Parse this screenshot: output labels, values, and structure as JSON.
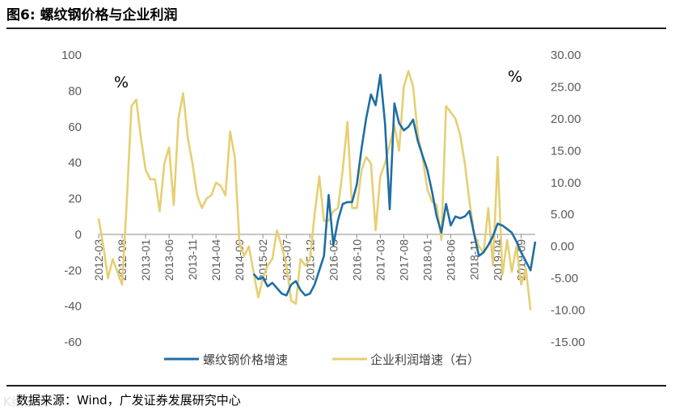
{
  "figure": {
    "number": "图6:",
    "title": "螺纹钢价格与企业利润",
    "source": "数据来源：Wind，广发证券发展研究中心",
    "watermark": "K线模板"
  },
  "chart_data": {
    "type": "line",
    "y_left": {
      "ticks": [
        "100",
        "80",
        "60",
        "40",
        "20",
        "0",
        "-20",
        "-40",
        "-60"
      ],
      "range": [
        -60,
        100
      ],
      "unit": "%"
    },
    "y_right": {
      "ticks": [
        "30.00",
        "25.00",
        "20.00",
        "15.00",
        "10.00",
        "5.00",
        "0.00",
        "-5.00",
        "-10.00",
        "-15.00"
      ],
      "range": [
        -15,
        30
      ],
      "unit": "%"
    },
    "x_ticks": [
      "2012-03",
      "2012-08",
      "2013-01",
      "2013-06",
      "2013-11",
      "2014-04",
      "2014-09",
      "2015-02",
      "2015-07",
      "2015-12",
      "2016-05",
      "2016-10",
      "2017-03",
      "2017-08",
      "2018-01",
      "2018-06",
      "2018-11",
      "2019-04",
      "2019-09"
    ],
    "legend_position": "bottom",
    "grid": false,
    "series": [
      {
        "name": "螺纹钢价格增速",
        "axis": "left",
        "color": "#1f6ea4",
        "points": [
          [
            "2014-12",
            -22
          ],
          [
            "2015-01",
            -25
          ],
          [
            "2015-02",
            -24
          ],
          [
            "2015-03",
            -29
          ],
          [
            "2015-04",
            -27
          ],
          [
            "2015-05",
            -30
          ],
          [
            "2015-06",
            -33
          ],
          [
            "2015-07",
            -34
          ],
          [
            "2015-08",
            -28
          ],
          [
            "2015-09",
            -26
          ],
          [
            "2015-10",
            -31
          ],
          [
            "2015-11",
            -34
          ],
          [
            "2015-12",
            -33
          ],
          [
            "2016-01",
            -28
          ],
          [
            "2016-02",
            -20
          ],
          [
            "2016-03",
            -12
          ],
          [
            "2016-04",
            22
          ],
          [
            "2016-05",
            -6
          ],
          [
            "2016-06",
            8
          ],
          [
            "2016-07",
            17
          ],
          [
            "2016-08",
            18
          ],
          [
            "2016-09",
            18
          ],
          [
            "2016-10",
            28
          ],
          [
            "2016-11",
            48
          ],
          [
            "2016-12",
            65
          ],
          [
            "2017-01",
            78
          ],
          [
            "2017-02",
            72
          ],
          [
            "2017-03",
            89
          ],
          [
            "2017-04",
            62
          ],
          [
            "2017-05",
            14
          ],
          [
            "2017-06",
            73
          ],
          [
            "2017-07",
            62
          ],
          [
            "2017-08",
            58
          ],
          [
            "2017-09",
            60
          ],
          [
            "2017-10",
            64
          ],
          [
            "2017-11",
            52
          ],
          [
            "2017-12",
            44
          ],
          [
            "2018-01",
            36
          ],
          [
            "2018-02",
            24
          ],
          [
            "2018-03",
            10
          ],
          [
            "2018-04",
            1
          ],
          [
            "2018-05",
            17
          ],
          [
            "2018-06",
            5
          ],
          [
            "2018-07",
            10
          ],
          [
            "2018-08",
            9
          ],
          [
            "2018-09",
            10
          ],
          [
            "2018-10",
            13
          ],
          [
            "2018-11",
            0
          ],
          [
            "2018-12",
            -12
          ],
          [
            "2019-01",
            -10
          ],
          [
            "2019-02",
            -6
          ],
          [
            "2019-03",
            -1
          ],
          [
            "2019-04",
            6
          ],
          [
            "2019-05",
            5
          ],
          [
            "2019-06",
            3
          ],
          [
            "2019-07",
            1
          ],
          [
            "2019-08",
            -4
          ],
          [
            "2019-09",
            -10
          ],
          [
            "2019-10",
            -15
          ],
          [
            "2019-11",
            -20
          ],
          [
            "2019-12",
            -4
          ]
        ]
      },
      {
        "name": "企业利润增速（右）",
        "axis": "right",
        "color": "#e6cf72",
        "points": [
          [
            "2012-03",
            4.4
          ],
          [
            "2012-04",
            0
          ],
          [
            "2012-05",
            -5
          ],
          [
            "2012-06",
            -2
          ],
          [
            "2012-07",
            -4
          ],
          [
            "2012-08",
            -6
          ],
          [
            "2012-09",
            7
          ],
          [
            "2012-10",
            22
          ],
          [
            "2012-11",
            23
          ],
          [
            "2012-12",
            17
          ],
          [
            "2013-01",
            12
          ],
          [
            "2013-02",
            10.5
          ],
          [
            "2013-03",
            10.5
          ],
          [
            "2013-04",
            5.5
          ],
          [
            "2013-05",
            13
          ],
          [
            "2013-06",
            15.5
          ],
          [
            "2013-07",
            6.5
          ],
          [
            "2013-08",
            20
          ],
          [
            "2013-09",
            24
          ],
          [
            "2013-10",
            17
          ],
          [
            "2013-11",
            13
          ],
          [
            "2013-12",
            8
          ],
          [
            "2014-01",
            6
          ],
          [
            "2014-02",
            7.5
          ],
          [
            "2014-03",
            8
          ],
          [
            "2014-04",
            10
          ],
          [
            "2014-05",
            9.5
          ],
          [
            "2014-06",
            8
          ],
          [
            "2014-07",
            18
          ],
          [
            "2014-08",
            14
          ],
          [
            "2014-09",
            0.5
          ],
          [
            "2014-10",
            -1.5
          ],
          [
            "2014-11",
            0
          ],
          [
            "2014-12",
            -4
          ],
          [
            "2015-01",
            -8
          ],
          [
            "2015-02",
            -5
          ],
          [
            "2015-03",
            -3
          ],
          [
            "2015-04",
            -2
          ],
          [
            "2015-05",
            2.5
          ],
          [
            "2015-06",
            0
          ],
          [
            "2015-07",
            -3
          ],
          [
            "2015-08",
            -8.5
          ],
          [
            "2015-09",
            -9
          ],
          [
            "2015-10",
            -2
          ],
          [
            "2015-11",
            -3
          ],
          [
            "2015-12",
            -2
          ],
          [
            "2016-01",
            5
          ],
          [
            "2016-02",
            11
          ],
          [
            "2016-03",
            4
          ],
          [
            "2016-04",
            4
          ],
          [
            "2016-05",
            5.5
          ],
          [
            "2016-06",
            6
          ],
          [
            "2016-07",
            12
          ],
          [
            "2016-08",
            19.5
          ],
          [
            "2016-09",
            6
          ],
          [
            "2016-10",
            6
          ],
          [
            "2016-11",
            12
          ],
          [
            "2016-12",
            14
          ],
          [
            "2017-01",
            13
          ],
          [
            "2017-02",
            2.5
          ],
          [
            "2017-03",
            11
          ],
          [
            "2017-04",
            13
          ],
          [
            "2017-05",
            16
          ],
          [
            "2017-06",
            19
          ],
          [
            "2017-07",
            15
          ],
          [
            "2017-08",
            25
          ],
          [
            "2017-09",
            27.5
          ],
          [
            "2017-10",
            25
          ],
          [
            "2017-11",
            17.5
          ],
          [
            "2017-12",
            14
          ],
          [
            "2018-01",
            9
          ],
          [
            "2018-02",
            7
          ],
          [
            "2018-03",
            6.5
          ],
          [
            "2018-04",
            1
          ],
          [
            "2018-05",
            22
          ],
          [
            "2018-06",
            21
          ],
          [
            "2018-07",
            20
          ],
          [
            "2018-08",
            17.5
          ],
          [
            "2018-09",
            13
          ],
          [
            "2018-10",
            7
          ],
          [
            "2018-11",
            2
          ],
          [
            "2018-12",
            0
          ],
          [
            "2019-01",
            -1
          ],
          [
            "2019-02",
            6
          ],
          [
            "2019-03",
            -3
          ],
          [
            "2019-04",
            14
          ],
          [
            "2019-05",
            -4.5
          ],
          [
            "2019-06",
            1
          ],
          [
            "2019-07",
            -4
          ],
          [
            "2019-08",
            0
          ],
          [
            "2019-09",
            -6
          ],
          [
            "2019-10",
            -3.5
          ],
          [
            "2019-11",
            -10
          ]
        ]
      }
    ]
  }
}
